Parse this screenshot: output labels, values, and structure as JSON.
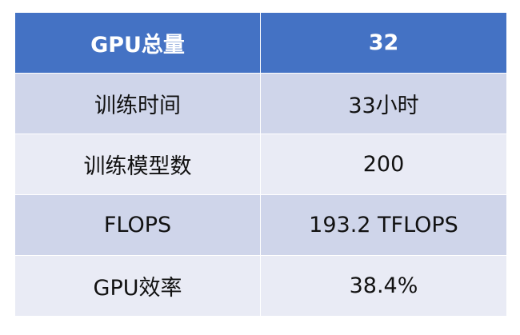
{
  "table": {
    "header": {
      "label": "GPU总量",
      "value": "32"
    },
    "rows": [
      {
        "label": "训练时间",
        "value": "33小时"
      },
      {
        "label": "训练模型数",
        "value": "200"
      },
      {
        "label": "FLOPS",
        "value": "193.2 TFLOPS"
      },
      {
        "label": "GPU效率",
        "value": "38.4%"
      }
    ]
  },
  "colors": {
    "header_bg": "#4472c4",
    "row_dark": "#cfd5ea",
    "row_light": "#e9ebf5"
  }
}
